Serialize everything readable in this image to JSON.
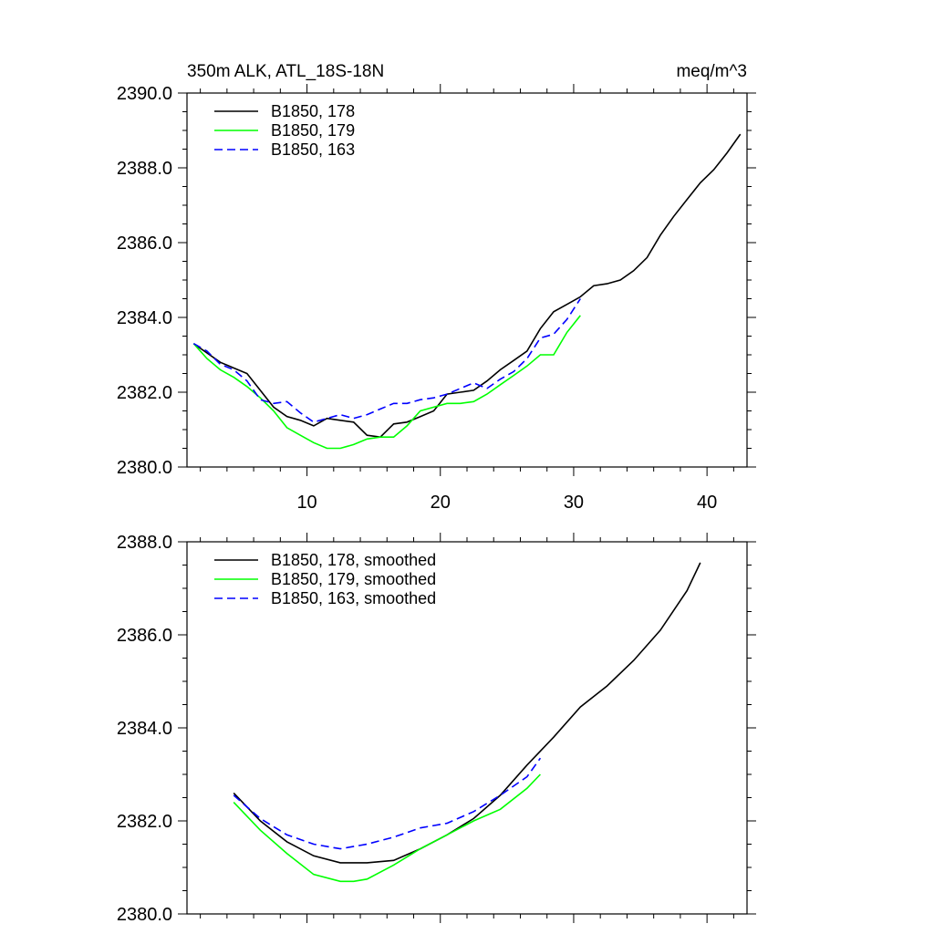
{
  "chart_data": [
    {
      "type": "line",
      "title": "350m ALK, ATL_18S-18N",
      "units": "meq/m^3",
      "xlim": [
        1,
        43
      ],
      "ylim": [
        2380,
        2390
      ],
      "xticks": [
        10,
        20,
        30,
        40
      ],
      "xtick_labels": [
        "10",
        "20",
        "30",
        "40"
      ],
      "yticks": [
        2380,
        2382,
        2384,
        2386,
        2388,
        2390
      ],
      "ytick_labels": [
        "2380.0",
        "2382.0",
        "2384.0",
        "2386.0",
        "2388.0",
        "2390.0"
      ],
      "legend_position": "top-left",
      "series": [
        {
          "name": "B1850, 178",
          "color": "#000000",
          "dash": "solid",
          "x": [
            1.5,
            3.5,
            5.5,
            7.5,
            8.5,
            9.5,
            10.5,
            11.5,
            12.5,
            13.5,
            14.5,
            15.5,
            16.5,
            17.5,
            18.5,
            19.5,
            20.5,
            21.5,
            22.5,
            23.5,
            24.5,
            25.5,
            26.5,
            27.5,
            28.5,
            29.5,
            30.5,
            31.5,
            32.5,
            33.5,
            34.5,
            35.5,
            36.5,
            37.5,
            38.5,
            39.5,
            40.5,
            41.5,
            42.5
          ],
          "values": [
            2383.3,
            2382.8,
            2382.5,
            2381.6,
            2381.35,
            2381.25,
            2381.1,
            2381.3,
            2381.25,
            2381.2,
            2380.85,
            2380.8,
            2381.15,
            2381.2,
            2381.35,
            2381.5,
            2381.95,
            2382.0,
            2382.05,
            2382.3,
            2382.6,
            2382.85,
            2383.1,
            2383.7,
            2384.15,
            2384.35,
            2384.55,
            2384.85,
            2384.9,
            2385.0,
            2385.25,
            2385.6,
            2386.2,
            2386.7,
            2387.15,
            2387.6,
            2387.95,
            2388.4,
            2388.9
          ]
        },
        {
          "name": "B1850, 179",
          "color": "#00ff00",
          "dash": "solid",
          "x": [
            1.5,
            2.5,
            3.5,
            4.5,
            5.5,
            6.5,
            7.5,
            8.5,
            9.5,
            10.5,
            11.5,
            12.5,
            13.5,
            14.5,
            15.5,
            16.5,
            17.5,
            18.5,
            19.5,
            20.5,
            21.5,
            22.5,
            23.5,
            24.5,
            25.5,
            26.5,
            27.5,
            28.5,
            29.5,
            30.5
          ],
          "values": [
            2383.3,
            2382.9,
            2382.6,
            2382.4,
            2382.15,
            2381.85,
            2381.5,
            2381.05,
            2380.85,
            2380.65,
            2380.5,
            2380.5,
            2380.6,
            2380.75,
            2380.8,
            2380.8,
            2381.1,
            2381.5,
            2381.6,
            2381.7,
            2381.7,
            2381.75,
            2381.95,
            2382.2,
            2382.45,
            2382.7,
            2383.0,
            2383.0,
            2383.6,
            2384.05
          ]
        },
        {
          "name": "B1850, 163",
          "color": "#0000ff",
          "dash": "dashed",
          "x": [
            1.5,
            2.5,
            3.5,
            4.5,
            5.5,
            6.5,
            7.5,
            8.5,
            9.5,
            10.5,
            11.5,
            12.5,
            13.5,
            14.5,
            15.5,
            16.5,
            17.5,
            18.5,
            19.5,
            20.5,
            21.5,
            22.5,
            23.5,
            24.5,
            25.5,
            26.5,
            27.5,
            28.5,
            29.5,
            30.5
          ],
          "values": [
            2383.3,
            2383.1,
            2382.75,
            2382.6,
            2382.3,
            2381.8,
            2381.7,
            2381.75,
            2381.45,
            2381.2,
            2381.3,
            2381.4,
            2381.3,
            2381.4,
            2381.55,
            2381.7,
            2381.7,
            2381.8,
            2381.85,
            2381.95,
            2382.1,
            2382.25,
            2382.1,
            2382.35,
            2382.55,
            2382.9,
            2383.45,
            2383.55,
            2383.95,
            2384.5
          ]
        }
      ]
    },
    {
      "type": "line",
      "title": "",
      "xlim": [
        1,
        43
      ],
      "ylim": [
        2380,
        2388
      ],
      "xticks": [
        10,
        20,
        30,
        40
      ],
      "yticks": [
        2380,
        2382,
        2384,
        2386,
        2388
      ],
      "ytick_labels": [
        "2380.0",
        "2382.0",
        "2384.0",
        "2386.0",
        "2388.0"
      ],
      "legend_position": "top-left",
      "series": [
        {
          "name": "B1850, 178, smoothed",
          "color": "#000000",
          "dash": "solid",
          "x": [
            4.5,
            6.5,
            8.5,
            10.5,
            12.5,
            14.5,
            16.5,
            18.5,
            20.5,
            22.5,
            24.5,
            26.5,
            28.5,
            30.5,
            32.5,
            34.5,
            36.5,
            38.5,
            39.5
          ],
          "values": [
            2382.6,
            2382.0,
            2381.55,
            2381.25,
            2381.1,
            2381.1,
            2381.15,
            2381.4,
            2381.7,
            2382.05,
            2382.55,
            2383.2,
            2383.8,
            2384.45,
            2384.9,
            2385.45,
            2386.1,
            2386.95,
            2387.55
          ]
        },
        {
          "name": "B1850, 179, smoothed",
          "color": "#00ff00",
          "dash": "solid",
          "x": [
            4.5,
            6.5,
            8.5,
            10.5,
            12.5,
            13.5,
            14.5,
            16.5,
            18.5,
            20.5,
            22.5,
            24.5,
            26.5,
            27.5
          ],
          "values": [
            2382.4,
            2381.8,
            2381.3,
            2380.85,
            2380.7,
            2380.7,
            2380.75,
            2381.05,
            2381.4,
            2381.7,
            2382.0,
            2382.25,
            2382.7,
            2383.0
          ]
        },
        {
          "name": "B1850, 163, smoothed",
          "color": "#0000ff",
          "dash": "dashed",
          "x": [
            4.5,
            6.5,
            8.5,
            10.5,
            12.5,
            14.5,
            16.5,
            18.5,
            20.5,
            22.5,
            24.5,
            26.5,
            27.5
          ],
          "values": [
            2382.55,
            2382.05,
            2381.7,
            2381.5,
            2381.4,
            2381.5,
            2381.65,
            2381.85,
            2381.95,
            2382.2,
            2382.55,
            2382.95,
            2383.35
          ]
        }
      ]
    }
  ]
}
